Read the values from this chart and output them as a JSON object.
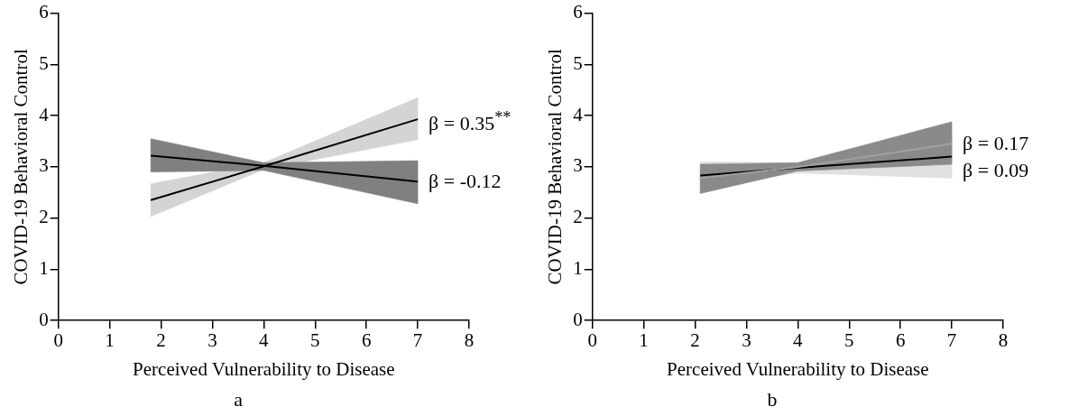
{
  "chart_data": [
    {
      "type": "line",
      "title": "a",
      "xlabel": "Perceived Vulnerability to Disease",
      "ylabel": "COVID-19 Behavioral Control",
      "xlim": [
        0,
        8
      ],
      "xticks": [
        0,
        1,
        2,
        3,
        4,
        5,
        6,
        7,
        8
      ],
      "ylim": [
        0,
        6
      ],
      "yticks": [
        0,
        1,
        2,
        3,
        4,
        5,
        6
      ],
      "grid": false,
      "legend": false,
      "series": [
        {
          "color": "#000000",
          "colors": [
            "#d4d4d4",
            "#d4d4d4",
            "#d4d4d4"
          ],
          "x": [
            1.8,
            4,
            7
          ],
          "values": [
            2.35,
            3.01,
            3.93
          ],
          "lower": [
            2.03,
            2.95,
            3.53
          ],
          "upper": [
            2.67,
            3.08,
            4.35
          ]
        },
        {
          "color": "#000000",
          "colors": [
            "#808080",
            "#808080",
            "#808080"
          ],
          "x": [
            1.8,
            4,
            7
          ],
          "values": [
            3.22,
            3.02,
            2.71
          ],
          "lower": [
            2.9,
            2.93,
            2.28
          ],
          "upper": [
            3.55,
            3.08,
            3.12
          ]
        }
      ],
      "annotations": [
        "β = 0.35$^{**}$",
        "β = -0.12"
      ]
    },
    {
      "type": "line",
      "title": "b",
      "xlabel": "Perceived Vulnerability to Disease",
      "ylabel": "COVID-19 Behavioral Control",
      "xlim": [
        0,
        8
      ],
      "xticks": [
        0,
        1,
        2,
        3,
        4,
        5,
        6,
        7,
        8
      ],
      "ylim": [
        0,
        6
      ],
      "yticks": [
        0,
        1,
        2,
        3,
        4,
        5,
        6
      ],
      "grid": false,
      "legend": false,
      "series": [
        {
          "color": "#000000",
          "colors": [
            "#e0e0e0",
            "#e0e0e0",
            "#e0e0e0"
          ],
          "x": [
            2.1,
            4,
            7
          ],
          "values": [
            2.83,
            2.98,
            3.2
          ],
          "lower": [
            2.6,
            2.88,
            2.78
          ],
          "upper": [
            3.1,
            3.08,
            3.62
          ]
        },
        {
          "color": "#a0a0a0",
          "colors": [
            "#8a8a8a",
            "#8a8a8a",
            "#8a8a8a"
          ],
          "x": [
            2.1,
            4,
            7
          ],
          "values": [
            2.78,
            3.0,
            3.45
          ],
          "lower": [
            2.48,
            2.92,
            3.05
          ],
          "upper": [
            3.05,
            3.08,
            3.88
          ]
        }
      ],
      "annotations": [
        "β = 0.17",
        "β = 0.09"
      ]
    }
  ]
}
